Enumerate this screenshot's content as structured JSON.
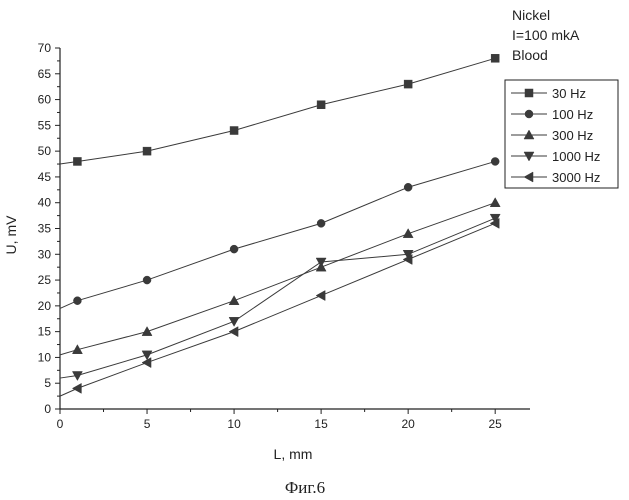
{
  "chart_data": {
    "type": "line",
    "title": "",
    "xlabel": "L, mm",
    "ylabel": "U, mV",
    "xlim": [
      0,
      27
    ],
    "ylim": [
      0,
      70
    ],
    "xticks": [
      0,
      5,
      10,
      15,
      20,
      25
    ],
    "yticks": [
      0,
      5,
      10,
      15,
      20,
      25,
      30,
      35,
      40,
      45,
      50,
      55,
      60,
      65,
      70
    ],
    "grid": false,
    "legend_position": "right",
    "annotations": [
      "Nickel",
      "I=100 mkA",
      "Blood"
    ],
    "caption": "Фиг.6",
    "series": [
      {
        "name": "30 Hz",
        "marker": "square",
        "x": [
          1,
          5,
          10,
          15,
          20,
          25
        ],
        "y": [
          48,
          50,
          54,
          59,
          63,
          68
        ]
      },
      {
        "name": "100 Hz",
        "marker": "circle",
        "x": [
          1,
          5,
          10,
          15,
          20,
          25
        ],
        "y": [
          21,
          25,
          31,
          36,
          43,
          48
        ]
      },
      {
        "name": "300 Hz",
        "marker": "triangle-up",
        "x": [
          1,
          5,
          10,
          15,
          20,
          25
        ],
        "y": [
          11.5,
          15,
          21,
          27.5,
          34,
          40
        ]
      },
      {
        "name": "1000 Hz",
        "marker": "triangle-down",
        "x": [
          1,
          5,
          10,
          15,
          20,
          25
        ],
        "y": [
          6.5,
          10.5,
          17,
          28.5,
          30,
          37
        ]
      },
      {
        "name": "3000 Hz",
        "marker": "triangle-left",
        "x": [
          1,
          5,
          10,
          15,
          20,
          25
        ],
        "y": [
          4,
          9,
          15,
          22,
          29,
          36
        ]
      }
    ],
    "trend_start": [
      {
        "series": "30 Hz",
        "y": 47.5
      },
      {
        "series": "100 Hz",
        "y": 19.5
      },
      {
        "series": "300 Hz",
        "y": 10.5
      },
      {
        "series": "1000 Hz",
        "y": 6
      },
      {
        "series": "3000 Hz",
        "y": 2.5
      }
    ]
  }
}
